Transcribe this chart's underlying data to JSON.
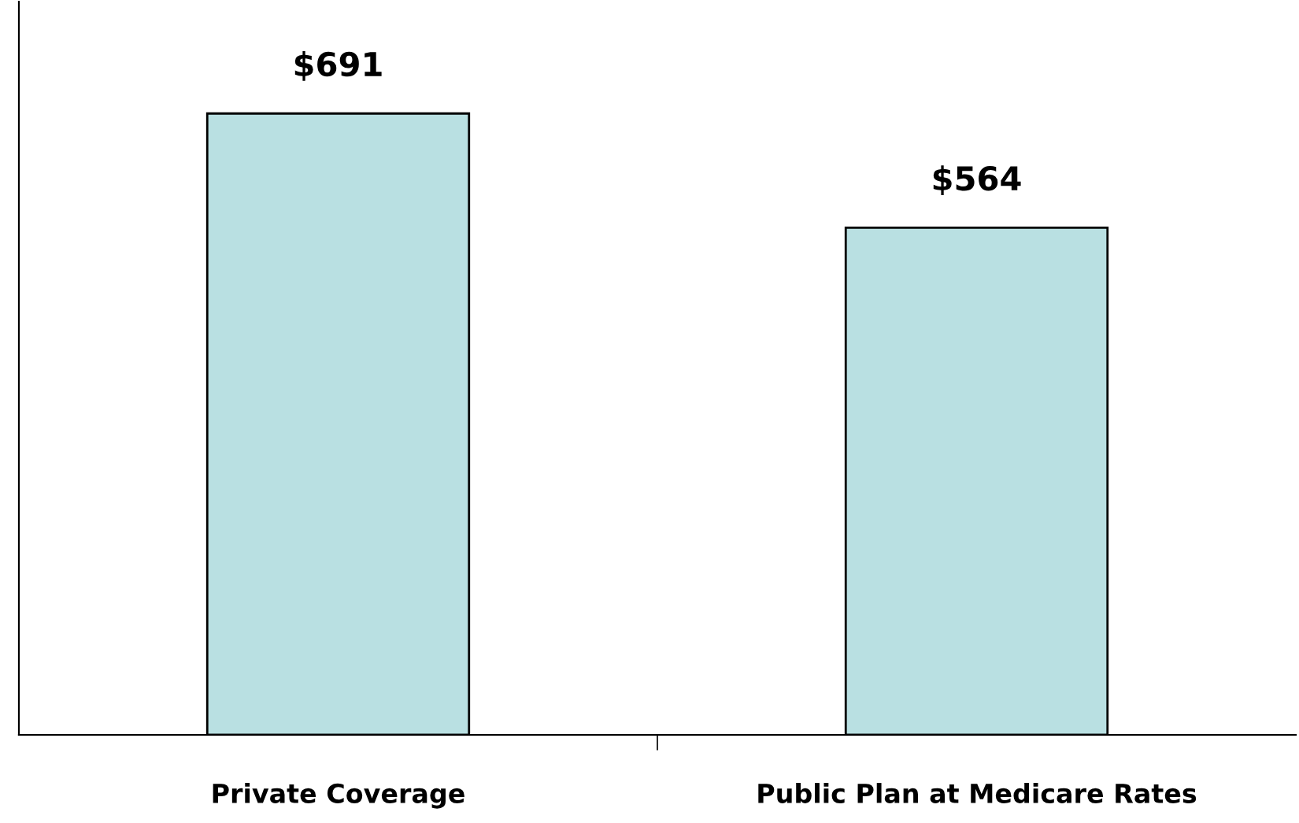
{
  "chart_data": {
    "type": "bar",
    "categories": [
      "Private Coverage",
      "Public Plan at Medicare Rates"
    ],
    "values": [
      691,
      564
    ],
    "value_labels": [
      "$691",
      "$564"
    ],
    "color": "#b9e0e2",
    "grid": false
  }
}
